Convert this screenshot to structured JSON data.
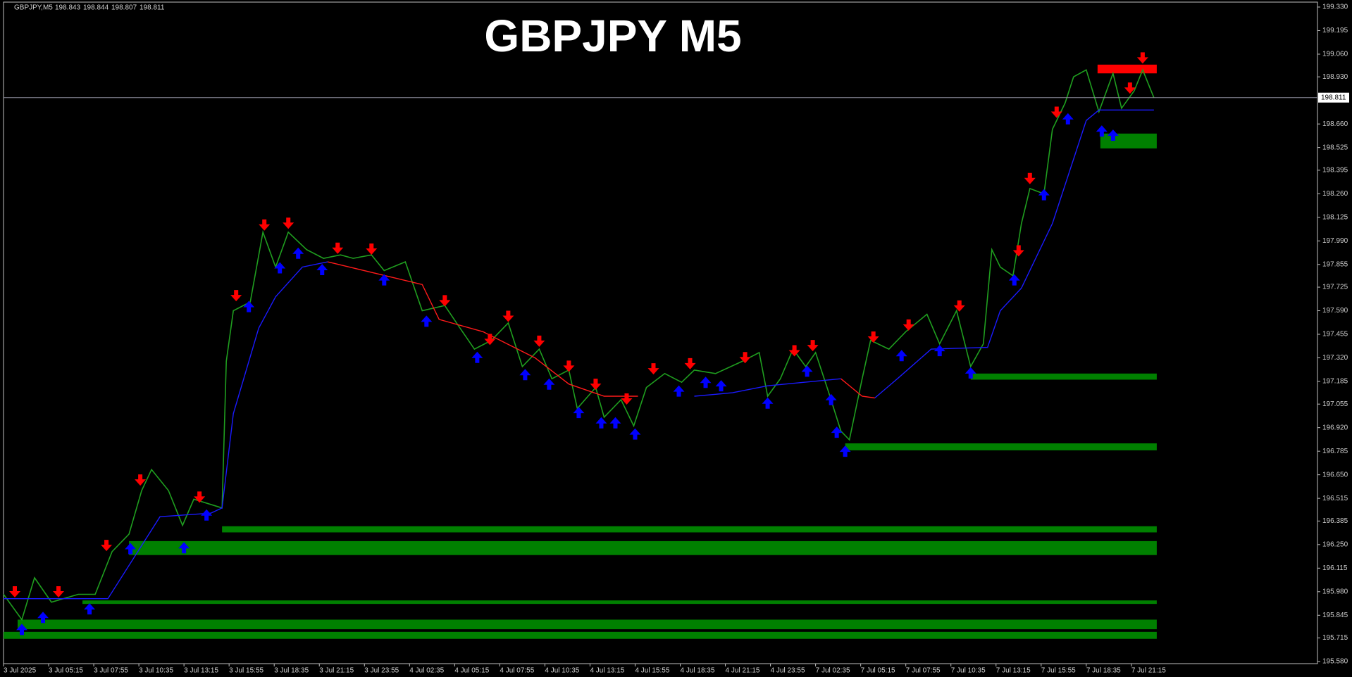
{
  "chart_data": {
    "type": "price",
    "symbol": "GBPJPY,M5",
    "ohlc": [
      198.843,
      198.844,
      198.807,
      198.811
    ],
    "title": "GBPJPY M5",
    "xlim": [
      0,
      932
    ],
    "ylim": [
      195.58,
      199.33
    ],
    "yticks": [
      {
        "value": 195.58,
        "label": "195.580"
      },
      195.715,
      195.845,
      {
        "value": 195.98,
        "label": "195.980"
      },
      196.115,
      {
        "value": 196.25,
        "label": "196.250"
      },
      196.385,
      196.515,
      {
        "value": 196.65,
        "label": "196.650"
      },
      196.785,
      {
        "value": 196.92,
        "label": "196.920"
      },
      197.055,
      197.185,
      {
        "value": 197.32,
        "label": "197.320"
      },
      197.455,
      {
        "value": 197.59,
        "label": "197.590"
      },
      197.725,
      197.855,
      {
        "value": 197.99,
        "label": "197.990"
      },
      198.125,
      {
        "value": 198.26,
        "label": "198.260"
      },
      198.395,
      198.525,
      {
        "value": 198.66,
        "label": "198.660"
      },
      {
        "value": 198.93,
        "label": "198.930"
      },
      {
        "value": 199.06,
        "label": "199.060"
      },
      199.195,
      {
        "value": 199.33,
        "label": "199.330"
      }
    ],
    "xticks": [
      {
        "value": 0,
        "label": "3 Jul 2025"
      },
      {
        "value": 32,
        "label": "3 Jul 05:15"
      },
      {
        "value": 64,
        "label": "3 Jul 07:55"
      },
      {
        "value": 96,
        "label": "3 Jul 10:35"
      },
      {
        "value": 128,
        "label": "3 Jul 13:15"
      },
      {
        "value": 160,
        "label": "3 Jul 15:55"
      },
      {
        "value": 192,
        "label": "3 Jul 18:35"
      },
      {
        "value": 224,
        "label": "3 Jul 21:15"
      },
      {
        "value": 256,
        "label": "3 Jul 23:55"
      },
      {
        "value": 288,
        "label": "4 Jul 02:35"
      },
      {
        "value": 320,
        "label": "4 Jul 05:15"
      },
      {
        "value": 352,
        "label": "4 Jul 07:55"
      },
      {
        "value": 384,
        "label": "4 Jul 10:35"
      },
      {
        "value": 416,
        "label": "4 Jul 13:15"
      },
      {
        "value": 448,
        "label": "4 Jul 15:55"
      },
      {
        "value": 480,
        "label": "4 Jul 18:35"
      },
      {
        "value": 512,
        "label": "4 Jul 21:15"
      },
      {
        "value": 544,
        "label": "4 Jul 23:55"
      },
      {
        "value": 576,
        "label": "7 Jul 02:35"
      },
      {
        "value": 608,
        "label": "7 Jul 05:15"
      },
      {
        "value": 640,
        "label": "7 Jul 07:55"
      },
      {
        "value": 672,
        "label": "7 Jul 10:35"
      },
      {
        "value": 704,
        "label": "7 Jul 13:15"
      },
      {
        "value": 736,
        "label": "7 Jul 15:55"
      },
      {
        "value": 768,
        "label": "7 Jul 18:35"
      },
      {
        "value": 800,
        "label": "7 Jul 21:15"
      }
    ],
    "last_price": 198.811,
    "price": {
      "color": "#1f9e1f",
      "x": [
        0,
        13,
        22,
        34,
        53,
        65,
        77,
        89,
        98,
        105,
        117,
        127,
        135,
        147,
        155,
        158,
        163,
        175,
        184,
        193,
        202,
        215,
        227,
        239,
        248,
        261,
        270,
        285,
        297,
        313,
        323,
        334,
        346,
        358,
        368,
        380,
        389,
        401,
        407,
        420,
        426,
        438,
        447,
        456,
        469,
        481,
        490,
        505,
        524,
        536,
        542,
        551,
        560,
        569,
        576,
        585,
        594,
        600,
        609,
        615,
        628,
        640,
        655,
        664,
        676,
        686,
        695,
        701,
        707,
        716,
        722,
        728,
        738,
        744,
        753,
        759,
        768,
        777,
        787,
        793,
        802,
        808,
        816
      ],
      "values": [
        195.965,
        195.82,
        196.06,
        195.92,
        195.965,
        195.965,
        196.21,
        196.31,
        196.56,
        196.68,
        196.56,
        196.36,
        196.51,
        196.48,
        196.46,
        197.3,
        197.59,
        197.64,
        198.04,
        197.84,
        198.04,
        197.94,
        197.89,
        197.91,
        197.89,
        197.91,
        197.82,
        197.87,
        197.59,
        197.62,
        197.5,
        197.37,
        197.42,
        197.52,
        197.27,
        197.37,
        197.2,
        197.25,
        197.03,
        197.15,
        196.98,
        197.08,
        196.93,
        197.15,
        197.23,
        197.18,
        197.25,
        197.23,
        197.3,
        197.35,
        197.1,
        197.2,
        197.37,
        197.27,
        197.35,
        197.13,
        196.9,
        196.85,
        197.2,
        197.42,
        197.37,
        197.47,
        197.57,
        197.4,
        197.59,
        197.27,
        197.4,
        197.94,
        197.84,
        197.79,
        198.09,
        198.29,
        198.26,
        198.63,
        198.78,
        198.93,
        198.97,
        198.73,
        198.95,
        198.75,
        198.85,
        198.97,
        198.81
      ]
    },
    "ma": {
      "x": [
        0,
        74,
        111,
        147,
        155,
        163,
        181,
        193,
        212,
        230,
        297,
        309,
        340,
        377,
        401,
        426,
        450,
        490,
        517,
        542,
        594,
        609,
        618,
        634,
        658,
        698,
        707,
        722,
        744,
        768,
        777,
        816
      ],
      "up": {
        "color": "#1a1aff",
        "values": [
          195.94,
          195.94,
          196.41,
          196.43,
          196.46,
          197.0,
          197.49,
          197.67,
          197.84,
          197.87,
          null,
          null,
          null,
          null,
          null,
          null,
          null,
          197.1,
          197.12,
          197.16,
          197.2,
          null,
          197.09,
          197.2,
          197.37,
          197.38,
          197.59,
          197.72,
          198.09,
          198.68,
          198.74,
          198.74
        ]
      },
      "down": {
        "color": "#ff1a1a",
        "values": [
          null,
          null,
          null,
          null,
          null,
          null,
          null,
          null,
          null,
          197.87,
          197.74,
          197.54,
          197.47,
          197.32,
          197.17,
          197.1,
          197.1,
          null,
          null,
          null,
          197.2,
          197.1,
          197.09,
          null,
          null,
          null,
          null,
          null,
          null,
          null,
          null,
          null
        ]
      }
    },
    "zones": [
      {
        "color": "#ff0000",
        "x": [
          776,
          818
        ],
        "y": [
          199.0,
          198.95
        ]
      },
      {
        "color": "#008000",
        "x": [
          778,
          818
        ],
        "y": [
          198.605,
          198.52
        ]
      },
      {
        "color": "#008000",
        "x": [
          686,
          818
        ],
        "y": [
          197.23,
          197.195
        ]
      },
      {
        "color": "#008000",
        "x": [
          597,
          818
        ],
        "y": [
          196.83,
          196.79
        ]
      },
      {
        "color": "#008000",
        "x": [
          155,
          818
        ],
        "y": [
          196.355,
          196.32
        ]
      },
      {
        "color": "#008000",
        "x": [
          89,
          818
        ],
        "y": [
          196.27,
          196.19
        ]
      },
      {
        "color": "#008000",
        "x": [
          56,
          818
        ],
        "y": [
          195.93,
          195.91
        ]
      },
      {
        "color": "#008000",
        "x": [
          10,
          818
        ],
        "y": [
          195.82,
          195.765
        ]
      },
      {
        "color": "#008000",
        "x": [
          0,
          818
        ],
        "y": [
          195.75,
          195.71
        ]
      }
    ],
    "sell": {
      "color": "#ff0000",
      "x": [
        8,
        39,
        73,
        97,
        139,
        165,
        185,
        202,
        237,
        261,
        313,
        345,
        358,
        380,
        401,
        420,
        442,
        461,
        487,
        526,
        561,
        574,
        617,
        642,
        678,
        720,
        728,
        747,
        799,
        808
      ],
      "y": [
        195.975,
        195.975,
        196.241,
        196.616,
        196.518,
        197.672,
        198.077,
        198.087,
        197.944,
        197.939,
        197.643,
        197.421,
        197.554,
        197.411,
        197.268,
        197.164,
        197.08,
        197.253,
        197.282,
        197.317,
        197.356,
        197.386,
        197.435,
        197.504,
        197.613,
        197.929,
        198.343,
        198.723,
        198.861,
        199.034
      ]
    },
    "buy": {
      "color": "#0000ff",
      "x": [
        13,
        28,
        61,
        90,
        128,
        144,
        174,
        196,
        209,
        226,
        270,
        300,
        336,
        370,
        387,
        408,
        424,
        434,
        448,
        479,
        498,
        509,
        542,
        570,
        587,
        591,
        597,
        637,
        664,
        686,
        717,
        738,
        755,
        779,
        787
      ],
      "y": [
        195.768,
        195.837,
        195.886,
        196.231,
        196.236,
        196.424,
        197.618,
        197.84,
        197.924,
        197.83,
        197.771,
        197.534,
        197.327,
        197.228,
        197.174,
        197.011,
        196.952,
        196.952,
        196.888,
        197.134,
        197.184,
        197.164,
        197.065,
        197.248,
        197.085,
        196.898,
        196.789,
        197.337,
        197.366,
        197.238,
        197.771,
        198.259,
        198.694,
        198.624,
        198.6
      ]
    }
  }
}
